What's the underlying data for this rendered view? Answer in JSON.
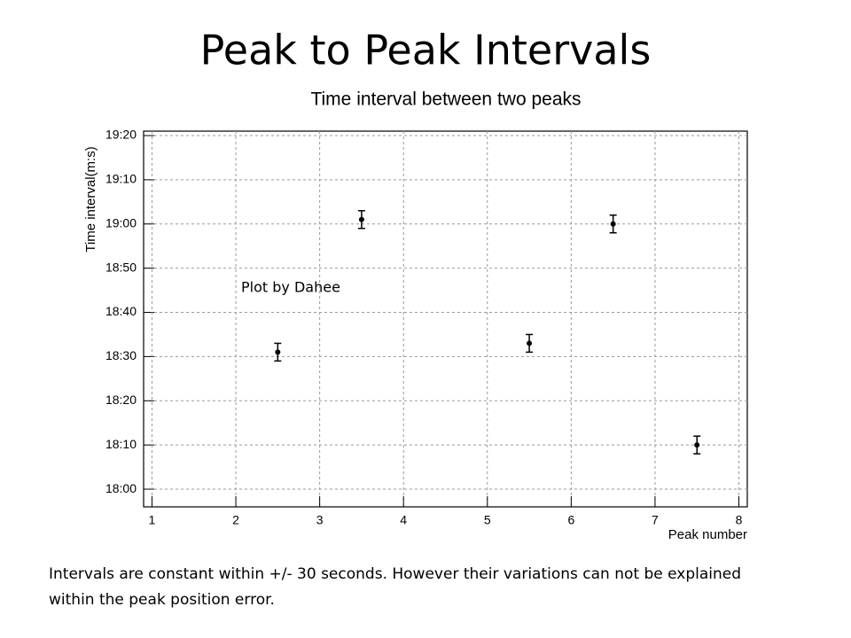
{
  "slide": {
    "title": "Peak to Peak Intervals",
    "caption": "Intervals are constant within +/- 30 seconds. However their variations can not be explained within the peak position error."
  },
  "chart_data": {
    "type": "scatter",
    "title": "Time interval between two peaks",
    "x_label": "Peak number",
    "y_label": "Time interval(m:s)",
    "annotation": "Plot by Dahee",
    "x": [
      2.5,
      3.5,
      5.5,
      6.5,
      7.5
    ],
    "values": [
      1111,
      1141,
      1113,
      1140,
      1090
    ],
    "errors": [
      2,
      2,
      2,
      2,
      2
    ],
    "color": "#000000",
    "xlim": [
      0.9,
      8.1
    ],
    "xticks": [
      1,
      2,
      3,
      4,
      5,
      6,
      7,
      8
    ],
    "ylim": [
      1076,
      1161
    ],
    "yticks": [
      {
        "value": 1080,
        "label": "18:00"
      },
      {
        "value": 1090,
        "label": "18:10"
      },
      {
        "value": 1100,
        "label": "18:20"
      },
      {
        "value": 1110,
        "label": "18:30"
      },
      {
        "value": 1120,
        "label": "18:40"
      },
      {
        "value": 1130,
        "label": "18:50"
      },
      {
        "value": 1140,
        "label": "19:00"
      },
      {
        "value": 1150,
        "label": "19:10"
      },
      {
        "value": 1160,
        "label": "19:20"
      }
    ],
    "grid": true
  }
}
